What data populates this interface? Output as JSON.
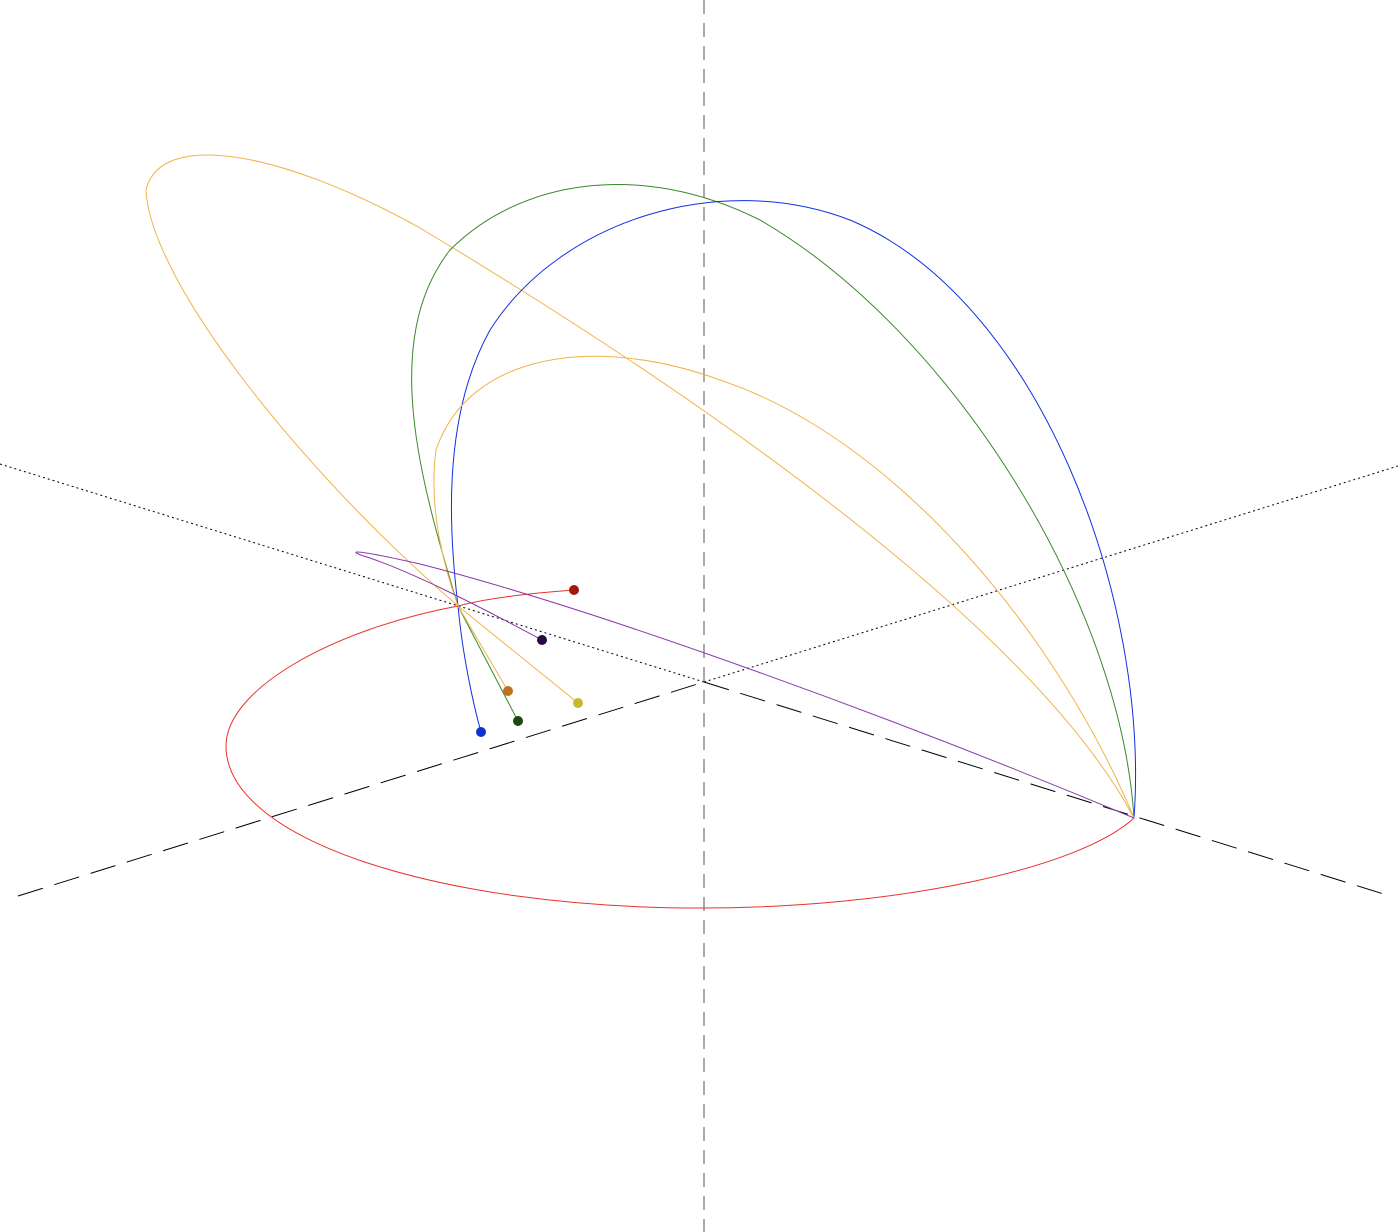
{
  "scene": {
    "background": "#ffffff",
    "axes": [
      {
        "id": "vertical-axis",
        "style": "long-dash",
        "color": "#555555"
      },
      {
        "id": "front-axis",
        "style": "long-dash",
        "color": "#000000"
      },
      {
        "id": "depth-axis",
        "style": "dotted",
        "color": "#000000"
      }
    ],
    "orbits": [
      {
        "id": "red-orbit",
        "color": "#e8332a"
      },
      {
        "id": "orange-large-orbit",
        "color": "#f0b34a"
      },
      {
        "id": "green-orbit",
        "color": "#3a8a2a"
      },
      {
        "id": "blue-orbit",
        "color": "#1030e0"
      },
      {
        "id": "orange-small-orbit",
        "color": "#f0b34a"
      },
      {
        "id": "purple-orbit",
        "color": "#8a3aa8"
      }
    ],
    "markers": [
      {
        "id": "red-marker",
        "color": "#a01810"
      },
      {
        "id": "dark-purple-marker",
        "color": "#2a0a40"
      },
      {
        "id": "orange-marker",
        "color": "#c07020"
      },
      {
        "id": "yellow-marker",
        "color": "#c8b830"
      },
      {
        "id": "dark-green-marker",
        "color": "#1a4a10"
      },
      {
        "id": "blue-marker",
        "color": "#1030d0"
      }
    ]
  }
}
